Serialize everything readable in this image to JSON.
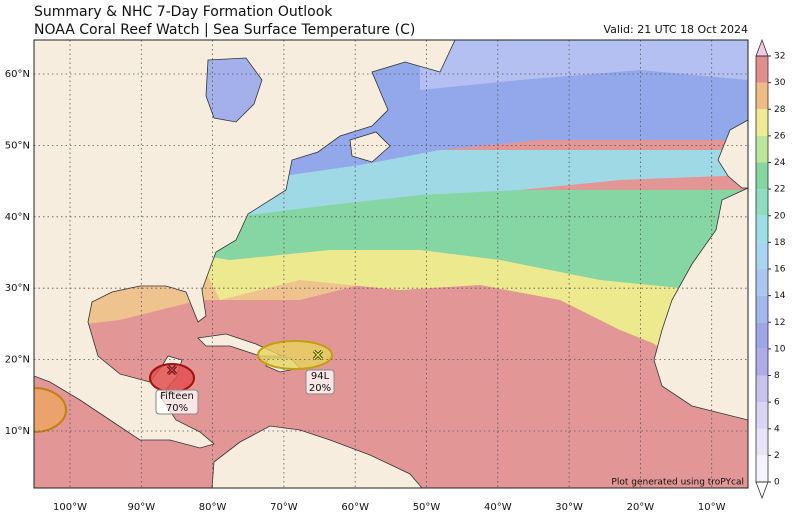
{
  "header": {
    "title": "Summary & NHC 7-Day Formation Outlook",
    "subtitle": "NOAA Coral Reef Watch | Sea Surface Temperature (C)",
    "valid": "Valid: 21 UTC 18 Oct 2024"
  },
  "map": {
    "lat_labels": [
      "60°N",
      "50°N",
      "40°N",
      "30°N",
      "20°N",
      "10°N"
    ],
    "lon_labels": [
      "100°W",
      "90°W",
      "80°W",
      "70°W",
      "60°W",
      "50°W",
      "40°W",
      "30°W",
      "20°W",
      "10°W"
    ]
  },
  "storms": [
    {
      "name": "Fifteen",
      "chance": "70%"
    },
    {
      "name": "94L",
      "chance": "20%"
    }
  ],
  "colorbar": {
    "ticks": [
      0,
      2,
      4,
      6,
      8,
      10,
      12,
      14,
      16,
      18,
      20,
      22,
      24,
      26,
      28,
      30,
      32
    ],
    "colors": [
      "#f5f3fb",
      "#e8e4f5",
      "#d8d4f1",
      "#c7c3ed",
      "#aeabe8",
      "#9da7e8",
      "#a3b9ee",
      "#abc7f1",
      "#a8d5f1",
      "#9ddfe6",
      "#8fdcc2",
      "#86d6a0",
      "#bce69b",
      "#f0ec92",
      "#eebc84",
      "#e08e8e"
    ]
  },
  "credit": "Plot generated using troPYcal"
}
